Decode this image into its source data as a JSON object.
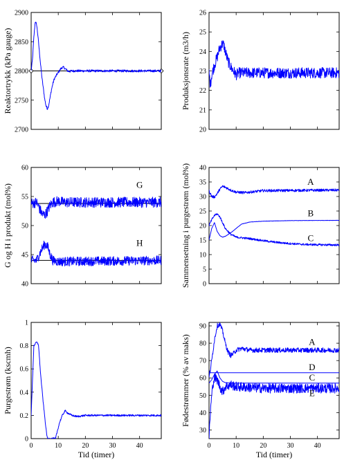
{
  "colors": {
    "series": "#0000ff",
    "setpoint": "#000000",
    "axes": "#000000",
    "background": "#ffffff"
  },
  "chart_data": [
    {
      "id": "reactor-pressure",
      "type": "line",
      "ylabel": "Reaktortrykk (kPa gauge)",
      "xlabel": "",
      "xlim": [
        0,
        48
      ],
      "ylim": [
        2700,
        2900
      ],
      "xticks": [
        0,
        10,
        20,
        30,
        40
      ],
      "xtick_labels": [
        "",
        "",
        "",
        "",
        ""
      ],
      "yticks": [
        2700,
        2750,
        2800,
        2850,
        2900
      ],
      "ytick_labels": [
        "2700",
        "2750",
        "2800",
        "2850",
        "2900"
      ],
      "setpoints": [
        {
          "y": 2800,
          "x": [
            0,
            48
          ],
          "markers": true
        }
      ],
      "series": [
        {
          "points": [
            [
              0,
              2800
            ],
            [
              0.5,
              2820
            ],
            [
              1,
              2858
            ],
            [
              1.5,
              2884
            ],
            [
              2,
              2880
            ],
            [
              2.5,
              2860
            ],
            [
              3,
              2835
            ],
            [
              3.5,
              2810
            ],
            [
              4,
              2788
            ],
            [
              4.5,
              2770
            ],
            [
              5,
              2752
            ],
            [
              5.5,
              2740
            ],
            [
              6,
              2735
            ],
            [
              6.5,
              2742
            ],
            [
              7,
              2755
            ],
            [
              7.5,
              2768
            ],
            [
              8,
              2778
            ],
            [
              8.5,
              2786
            ],
            [
              9,
              2790
            ],
            [
              9.5,
              2794
            ],
            [
              10,
              2797
            ],
            [
              10.5,
              2801
            ],
            [
              11,
              2804
            ],
            [
              11.5,
              2806
            ],
            [
              12,
              2806
            ],
            [
              12.5,
              2804
            ],
            [
              13,
              2802
            ],
            [
              13.5,
              2800
            ],
            [
              14,
              2799
            ],
            [
              15,
              2800
            ],
            [
              48,
              2800
            ]
          ],
          "noise": 2
        }
      ]
    },
    {
      "id": "production-rate",
      "type": "line",
      "ylabel": "Produksjonsrate (m3/h)",
      "xlabel": "",
      "xlim": [
        0,
        48
      ],
      "ylim": [
        20,
        26
      ],
      "xticks": [
        0,
        10,
        20,
        30,
        40
      ],
      "xtick_labels": [
        "",
        "",
        "",
        "",
        ""
      ],
      "yticks": [
        20,
        21,
        22,
        23,
        24,
        25,
        26
      ],
      "ytick_labels": [
        "20",
        "21",
        "22",
        "23",
        "24",
        "25",
        "26"
      ],
      "setpoints": [],
      "series": [
        {
          "points": [
            [
              0,
              22.9
            ],
            [
              0.5,
              22.3
            ],
            [
              1,
              22.8
            ],
            [
              2,
              23.3
            ],
            [
              3,
              23.7
            ],
            [
              4,
              24.2
            ],
            [
              5,
              24.4
            ],
            [
              5.5,
              24.3
            ],
            [
              6,
              24.0
            ],
            [
              7,
              23.5
            ],
            [
              8,
              23.2
            ],
            [
              9,
              23.0
            ],
            [
              10,
              22.8
            ],
            [
              11,
              22.9
            ],
            [
              12,
              22.9
            ],
            [
              48,
              22.9
            ]
          ],
          "noise": 0.28
        }
      ]
    },
    {
      "id": "g-h-product",
      "type": "line",
      "ylabel": "G og H i produkt (mol%)",
      "xlabel": "",
      "xlim": [
        0,
        48
      ],
      "ylim": [
        40,
        60
      ],
      "xticks": [
        0,
        10,
        20,
        30,
        40
      ],
      "xtick_labels": [
        "",
        "",
        "",
        "",
        ""
      ],
      "yticks": [
        40,
        45,
        50,
        55,
        60
      ],
      "ytick_labels": [
        "40",
        "45",
        "50",
        "55",
        "60"
      ],
      "setpoints": [
        {
          "y": 53.8,
          "x": [
            0,
            48
          ],
          "markers": false
        },
        {
          "y": 44,
          "x": [
            0,
            48
          ],
          "markers": false
        }
      ],
      "series": [
        {
          "points": [
            [
              0,
              53.8
            ],
            [
              2,
              54
            ],
            [
              3,
              53
            ],
            [
              4,
              52
            ],
            [
              5,
              51.8
            ],
            [
              6,
              52.5
            ],
            [
              7,
              53.5
            ],
            [
              8,
              54
            ],
            [
              10,
              54.2
            ],
            [
              12,
              54
            ],
            [
              48,
              54
            ]
          ],
          "noise": 0.9
        },
        {
          "points": [
            [
              0,
              44
            ],
            [
              2,
              44
            ],
            [
              3,
              45
            ],
            [
              4,
              46
            ],
            [
              5,
              46.8
            ],
            [
              6,
              46.5
            ],
            [
              7,
              45
            ],
            [
              8,
              44
            ],
            [
              10,
              43.8
            ],
            [
              48,
              44
            ]
          ],
          "noise": 0.8
        }
      ],
      "annotations": [
        {
          "text": "G",
          "x": 40,
          "y": 56.5
        },
        {
          "text": "H",
          "x": 40,
          "y": 46.5
        }
      ]
    },
    {
      "id": "purge-composition",
      "type": "line",
      "ylabel": "Sammensetning i purgestrøm (mol%)",
      "xlabel": "",
      "xlim": [
        0,
        48
      ],
      "ylim": [
        0,
        40
      ],
      "xticks": [
        0,
        10,
        20,
        30,
        40
      ],
      "xtick_labels": [
        "",
        "",
        "",
        "",
        ""
      ],
      "yticks": [
        0,
        5,
        10,
        15,
        20,
        25,
        30,
        35,
        40
      ],
      "ytick_labels": [
        "0",
        "5",
        "10",
        "15",
        "20",
        "25",
        "30",
        "35",
        "40"
      ],
      "setpoints": [],
      "series": [
        {
          "name": "A",
          "points": [
            [
              0,
              32
            ],
            [
              1,
              30
            ],
            [
              2,
              29.8
            ],
            [
              3,
              31
            ],
            [
              4,
              32.5
            ],
            [
              5,
              33.5
            ],
            [
              6,
              33.2
            ],
            [
              8,
              32.2
            ],
            [
              10,
              31.5
            ],
            [
              13,
              31.3
            ],
            [
              16,
              31.6
            ],
            [
              20,
              32
            ],
            [
              48,
              32.2
            ]
          ],
          "noise": 0.45
        },
        {
          "name": "B",
          "points": [
            [
              0,
              15
            ],
            [
              1,
              19
            ],
            [
              2,
              21
            ],
            [
              3,
              18
            ],
            [
              4,
              16.5
            ],
            [
              5,
              16
            ],
            [
              6,
              16.3
            ],
            [
              8,
              17.5
            ],
            [
              10,
              19
            ],
            [
              12,
              20.5
            ],
            [
              15,
              21.2
            ],
            [
              20,
              21.5
            ],
            [
              30,
              21.7
            ],
            [
              48,
              21.8
            ]
          ],
          "noise": 0.05
        },
        {
          "name": "C",
          "points": [
            [
              0,
              20
            ],
            [
              1,
              22
            ],
            [
              2,
              23.5
            ],
            [
              3,
              24
            ],
            [
              4,
              23
            ],
            [
              5,
              21
            ],
            [
              6,
              19
            ],
            [
              8,
              17
            ],
            [
              10,
              16
            ],
            [
              15,
              15.5
            ],
            [
              20,
              14.8
            ],
            [
              25,
              14.2
            ],
            [
              30,
              13.8
            ],
            [
              35,
              13.5
            ],
            [
              40,
              13.4
            ],
            [
              48,
              13.3
            ]
          ],
          "noise": 0.35
        }
      ],
      "annotations": [
        {
          "text": "A",
          "x": 37.5,
          "y": 34
        },
        {
          "text": "B",
          "x": 37.5,
          "y": 23.2
        },
        {
          "text": "C",
          "x": 37.5,
          "y": 14.6
        }
      ]
    },
    {
      "id": "purge-flow",
      "type": "line",
      "ylabel": "Purgestrøm (kscmh)",
      "xlabel": "Tid (timer)",
      "xlim": [
        0,
        48
      ],
      "ylim": [
        0,
        1
      ],
      "xticks": [
        0,
        10,
        20,
        30,
        40
      ],
      "xtick_labels": [
        "0",
        "10",
        "20",
        "30",
        "40"
      ],
      "yticks": [
        0,
        0.2,
        0.4,
        0.6,
        0.8,
        1
      ],
      "ytick_labels": [
        "0",
        "0.2",
        "0.4",
        "0.6",
        "0.8",
        "1"
      ],
      "setpoints": [],
      "series": [
        {
          "points": [
            [
              0,
              0.2
            ],
            [
              0.5,
              0.5
            ],
            [
              1,
              0.8
            ],
            [
              2,
              0.83
            ],
            [
              2.7,
              0.81
            ],
            [
              3.5,
              0.55
            ],
            [
              4.5,
              0.3
            ],
            [
              5.5,
              0.08
            ],
            [
              6,
              0
            ],
            [
              9,
              0
            ],
            [
              9.5,
              0.05
            ],
            [
              10.5,
              0.14
            ],
            [
              11.5,
              0.2
            ],
            [
              12.5,
              0.24
            ],
            [
              13.5,
              0.22
            ],
            [
              15,
              0.2
            ],
            [
              17,
              0.19
            ],
            [
              20,
              0.2
            ],
            [
              48,
              0.2
            ]
          ],
          "noise": 0.008
        }
      ]
    },
    {
      "id": "feed-flows",
      "type": "line",
      "ylabel": "Fødestrømmer (% av maks)",
      "xlabel": "Tid (timer)",
      "xlim": [
        0,
        48
      ],
      "ylim": [
        25,
        92
      ],
      "xticks": [
        0,
        10,
        20,
        30,
        40
      ],
      "xtick_labels": [
        "0",
        "10",
        "20",
        "30",
        "40"
      ],
      "yticks": [
        30,
        40,
        50,
        60,
        70,
        80,
        90
      ],
      "ytick_labels": [
        "30",
        "40",
        "50",
        "60",
        "70",
        "80",
        "90"
      ],
      "setpoints": [],
      "series": [
        {
          "name": "A",
          "points": [
            [
              0,
              60
            ],
            [
              1,
              70
            ],
            [
              2,
              82
            ],
            [
              3,
              90
            ],
            [
              4,
              91
            ],
            [
              5,
              87
            ],
            [
              6,
              80
            ],
            [
              7,
              75
            ],
            [
              8,
              73
            ],
            [
              9,
              74
            ],
            [
              10,
              76
            ],
            [
              12,
              77
            ],
            [
              15,
              76
            ],
            [
              20,
              76
            ],
            [
              48,
              76
            ]
          ],
          "noise": 1.4
        },
        {
          "name": "D",
          "points": [
            [
              0,
              63
            ],
            [
              48,
              63
            ]
          ],
          "noise": 0
        },
        {
          "name": "C",
          "points": [
            [
              0,
              57
            ],
            [
              1,
              59
            ],
            [
              2,
              62
            ],
            [
              3,
              64
            ],
            [
              4,
              60
            ],
            [
              5,
              58
            ],
            [
              6,
              57.3
            ],
            [
              8,
              57
            ],
            [
              48,
              57
            ]
          ],
          "noise": 0
        },
        {
          "name": "E",
          "points": [
            [
              0,
              26
            ],
            [
              0.5,
              40
            ],
            [
              1,
              50
            ],
            [
              1.5,
              57
            ],
            [
              2,
              60
            ],
            [
              3,
              59
            ],
            [
              4,
              55
            ],
            [
              5,
              52
            ],
            [
              6,
              55
            ],
            [
              8,
              56
            ],
            [
              10,
              55
            ],
            [
              15,
              54.5
            ],
            [
              20,
              54
            ],
            [
              48,
              54
            ]
          ],
          "noise": 2.8
        }
      ],
      "annotations": [
        {
          "text": "A",
          "x": 38,
          "y": 79
        },
        {
          "text": "D",
          "x": 38,
          "y": 64.5
        },
        {
          "text": "C",
          "x": 38,
          "y": 58.5
        },
        {
          "text": "E",
          "x": 38,
          "y": 49.5
        }
      ]
    }
  ]
}
